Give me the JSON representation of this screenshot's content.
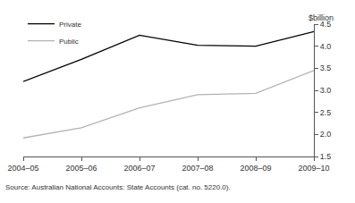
{
  "chart_data": {
    "type": "line",
    "y_label": "$billion",
    "source": "Source: Australian National Accounts: State Accounts (cat. no. 5220.0).",
    "categories": [
      "2004–05",
      "2005–06",
      "2006–07",
      "2007–08",
      "2008–09",
      "2009–10"
    ],
    "series": [
      {
        "name": "Private",
        "color": "#000000",
        "values": [
          3.2,
          3.7,
          4.25,
          4.02,
          4.0,
          4.33
        ]
      },
      {
        "name": "Public",
        "color": "#b3b3b3",
        "values": [
          1.92,
          2.15,
          2.6,
          2.9,
          2.93,
          3.45
        ]
      }
    ],
    "ylim": [
      1.5,
      4.5
    ],
    "yticks": [
      1.5,
      {
        "value": 2,
        "label": "2.0"
      },
      2.5,
      {
        "value": 3,
        "label": "3.0"
      },
      3.5,
      {
        "value": 4,
        "label": "4.0"
      },
      4.5
    ],
    "grid": false,
    "legend": "top left"
  }
}
